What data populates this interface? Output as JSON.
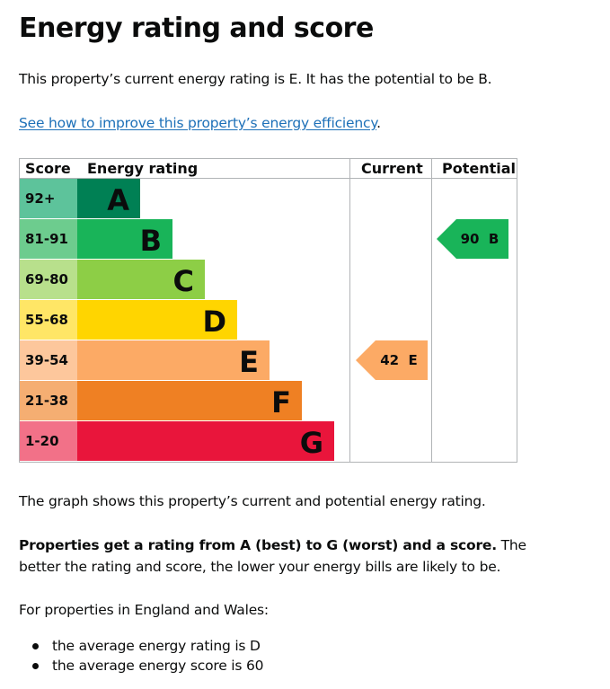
{
  "page": {
    "title": "Energy rating and score",
    "intro": "This property’s current energy rating is E. It has the potential to be B.",
    "improve_link": "See how to improve this property’s energy efficiency",
    "improve_link_suffix": ".",
    "graph_caption": "The graph shows this property’s current and potential energy rating.",
    "rating_note_bold": "Properties get a rating from A (best) to G (worst) and a score.",
    "rating_note_rest": " The better the rating and score, the lower your energy bills are likely to be.",
    "averages_intro": "For properties in England and Wales:",
    "averages": [
      "the average energy rating is D",
      "the average energy score is 60"
    ]
  },
  "epc_chart": {
    "headers": {
      "score": "Score",
      "rating": "Energy rating",
      "current": "Current",
      "potential": "Potential"
    },
    "bands": [
      {
        "score": "92+",
        "letter": "A",
        "bar_color": "#008054",
        "score_color": "#5dc39b"
      },
      {
        "score": "81-91",
        "letter": "B",
        "bar_color": "#19b459",
        "score_color": "#6dcc8e"
      },
      {
        "score": "69-80",
        "letter": "C",
        "bar_color": "#8dce46",
        "score_color": "#b8e08c"
      },
      {
        "score": "55-68",
        "letter": "D",
        "bar_color": "#ffd500",
        "score_color": "#ffe666"
      },
      {
        "score": "39-54",
        "letter": "E",
        "bar_color": "#fcaa65",
        "score_color": "#fdc79c"
      },
      {
        "score": "21-38",
        "letter": "F",
        "bar_color": "#ef8023",
        "score_color": "#f5ae72"
      },
      {
        "score": "1-20",
        "letter": "G",
        "bar_color": "#e9153b",
        "score_color": "#f27188"
      }
    ],
    "current": {
      "score": 42,
      "letter": "E",
      "label": "42  E",
      "color": "#fcaa65"
    },
    "potential": {
      "score": 90,
      "letter": "B",
      "label": "90  B",
      "color": "#19b459"
    }
  }
}
